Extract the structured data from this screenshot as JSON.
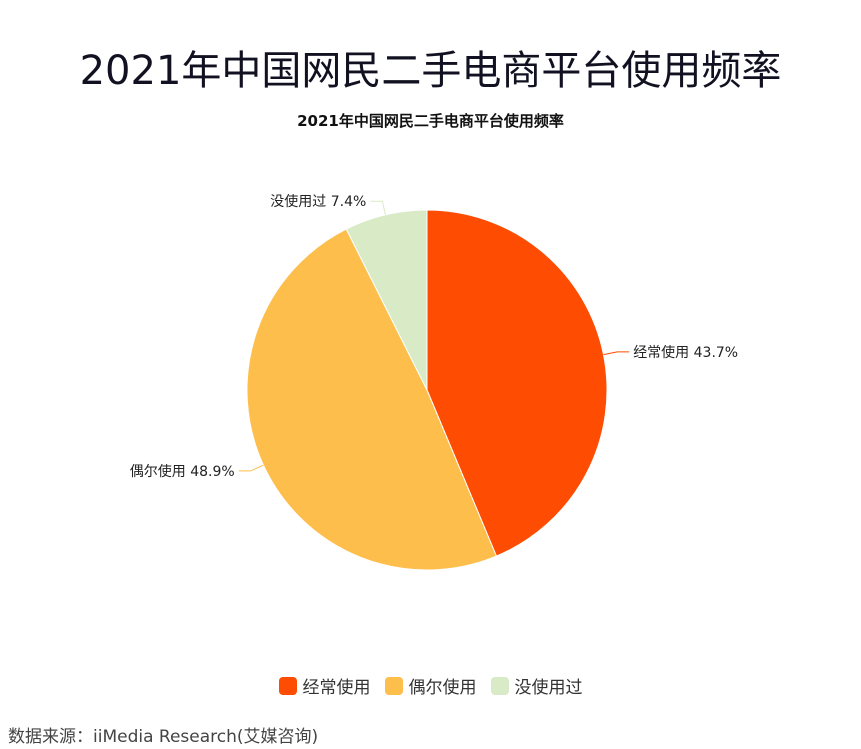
{
  "page": {
    "main_title": "2021年中国网民二手电商平台使用频率",
    "source": "数据来源：iiMedia Research(艾媒咨询)"
  },
  "chart_data": {
    "type": "pie",
    "title": "2021年中国网民二手电商平台使用频率",
    "categories": [
      "经常使用",
      "偶尔使用",
      "没使用过"
    ],
    "values": [
      43.7,
      48.9,
      7.4
    ],
    "labels": [
      "经常使用 43.7%",
      "偶尔使用 48.9%",
      "没使用过 7.4%"
    ],
    "colors": [
      "#fe4c02",
      "#fdbe4b",
      "#d9eac6"
    ],
    "legend_position": "bottom",
    "start": "top",
    "direction": "clockwise"
  }
}
